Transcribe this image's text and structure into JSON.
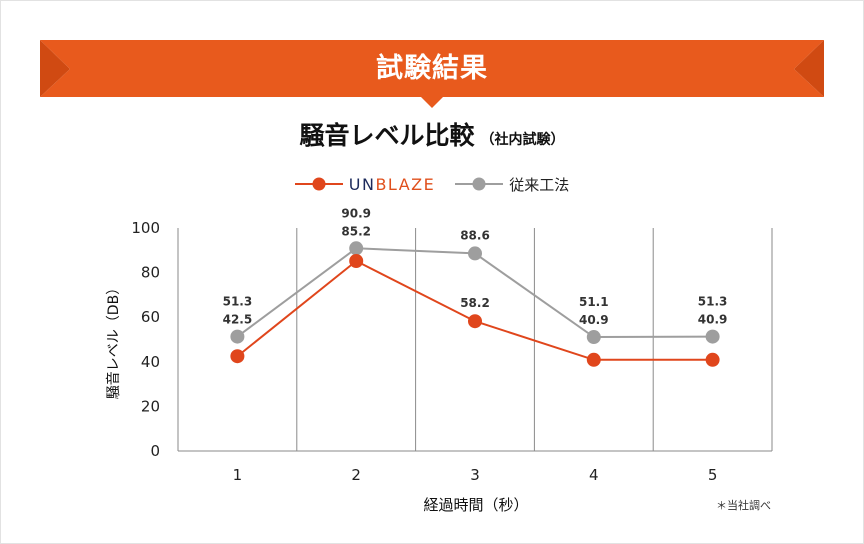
{
  "banner": {
    "title": "試験結果",
    "color": "#e85a1d",
    "color_dark": "#cc4a14"
  },
  "chart_data": {
    "type": "line",
    "title": "騒音レベル比較",
    "subtitle": "（社内試験）",
    "xlabel": "経過時間（秒）",
    "ylabel": "騒音レベル（DB）",
    "x": [
      "1",
      "2",
      "3",
      "4",
      "5"
    ],
    "ylim": [
      0,
      100
    ],
    "yticks": [
      "0",
      "20",
      "40",
      "60",
      "80",
      "100"
    ],
    "grid": "vertical",
    "legend_position": "top-center",
    "series": [
      {
        "name": "UNBLAZE",
        "color": "#e0461c",
        "values": [
          42.5,
          85.2,
          58.2,
          40.9,
          40.9
        ]
      },
      {
        "name": "従来工法",
        "color": "#9e9e9e",
        "values": [
          51.3,
          90.9,
          88.6,
          51.1,
          51.3
        ]
      }
    ],
    "data_labels": [
      [
        "51.3",
        "42.5"
      ],
      [
        "90.9",
        "85.2"
      ],
      [
        "88.6",
        "58.2"
      ],
      [
        "51.1",
        "40.9"
      ],
      [
        "51.3",
        "40.9"
      ]
    ]
  },
  "legend": {
    "brand_part1": "UN",
    "brand_part2": "BLAZE",
    "gray_label": "従来工法"
  },
  "note": "＊当社調べ"
}
